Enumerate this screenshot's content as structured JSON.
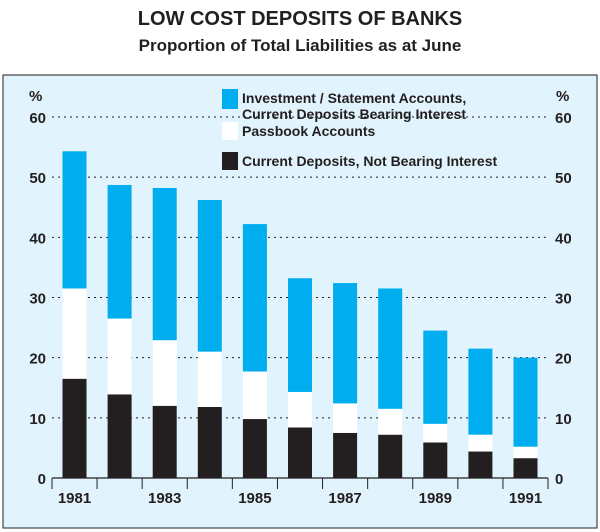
{
  "chart_data": {
    "type": "bar",
    "stacked": true,
    "title": "LOW COST DEPOSITS OF BANKS",
    "subtitle": "Proportion of Total Liabilities as at June",
    "ylabel_left": "%",
    "ylabel_right": "%",
    "ylim": [
      0,
      60
    ],
    "yticks": [
      0,
      10,
      20,
      30,
      40,
      50,
      60
    ],
    "grid": true,
    "legend_position": "top-right",
    "categories": [
      "1981",
      "1982",
      "1983",
      "1984",
      "1985",
      "1986",
      "1987",
      "1988",
      "1989",
      "1990",
      "1991"
    ],
    "xtick_labels": [
      "1981",
      "1983",
      "1985",
      "1987",
      "1989",
      "1991"
    ],
    "series": [
      {
        "name": "Current Deposits, Not Bearing Interest",
        "color": "#231f20",
        "values": [
          16.5,
          13.9,
          12.0,
          11.8,
          9.8,
          8.4,
          7.5,
          7.2,
          5.9,
          4.4,
          3.3
        ]
      },
      {
        "name": "Passbook Accounts",
        "color": "#ffffff",
        "values": [
          15.0,
          12.6,
          10.9,
          9.2,
          7.9,
          5.9,
          4.9,
          4.3,
          3.1,
          2.8,
          1.9
        ]
      },
      {
        "name": "Investment / Statement Accounts, Current Deposits Bearing Interest",
        "color": "#00aeef",
        "values": [
          22.8,
          22.2,
          25.3,
          25.2,
          24.5,
          18.9,
          20.0,
          20.0,
          15.5,
          14.3,
          14.8
        ]
      }
    ],
    "legend_lines": [
      [
        "Investment / Statement Accounts,",
        "Current Deposits Bearing Interest"
      ],
      [
        "Passbook Accounts"
      ],
      [
        "Current Deposits, Not Bearing Interest"
      ]
    ],
    "panel_color": "#e1f3fc"
  }
}
